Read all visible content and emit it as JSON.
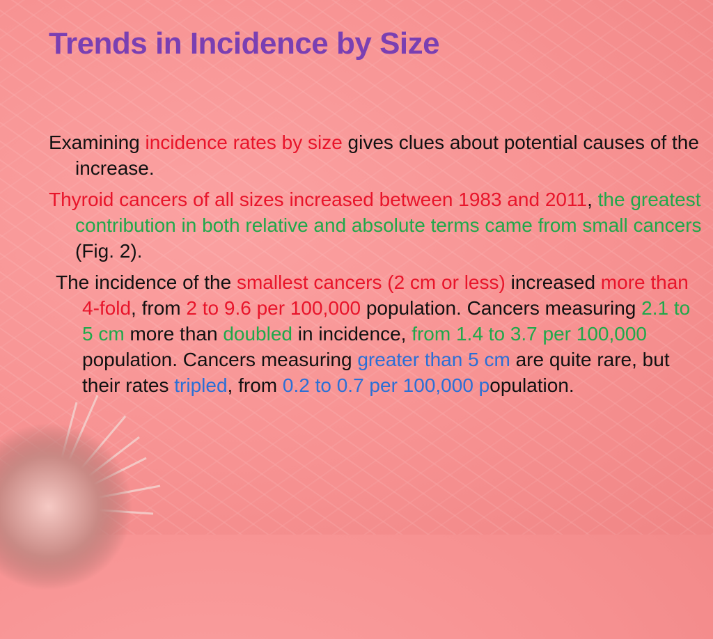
{
  "title": "Trends in Incidence by Size",
  "colors": {
    "title": "#7a3fb2",
    "red": "#e8142a",
    "green": "#1fa84a",
    "blue": "#2a6fd6",
    "background": "#f79292"
  },
  "p1": {
    "s1": "Examining ",
    "s2": "incidence rates by size",
    "s3": " gives clues about potential causes of the increase."
  },
  "p2": {
    "s1": "Thyroid cancers of all sizes increased between 1983 and 2011",
    "s2": ", ",
    "s3": "the greatest contribution in both relative and absolute terms came from small cancers",
    "s4": " (Fig. 2)."
  },
  "p3": {
    "s1": "The incidence of the ",
    "s2": "smallest cancers (2 cm or less)",
    "s3": " increased ",
    "s4": "more than 4-fold",
    "s5": ", from ",
    "s6": "2 to 9.6 per 100,000",
    "s7": " population. Cancers measuring ",
    "s8": "2.1 to 5 cm",
    "s9": " more than ",
    "s10": "doubled",
    "s11": " in incidence, ",
    "s12": "from 1.4 to 3.7 per 100,000",
    "s13": " population. Cancers measuring ",
    "s14": "greater than 5 cm",
    "s15": " are quite rare, but their rates  ",
    "s16": "tripled",
    "s17": ", from ",
    "s18": "0.2 to 0.7 per 100,000 p",
    "s19": "opulation."
  }
}
